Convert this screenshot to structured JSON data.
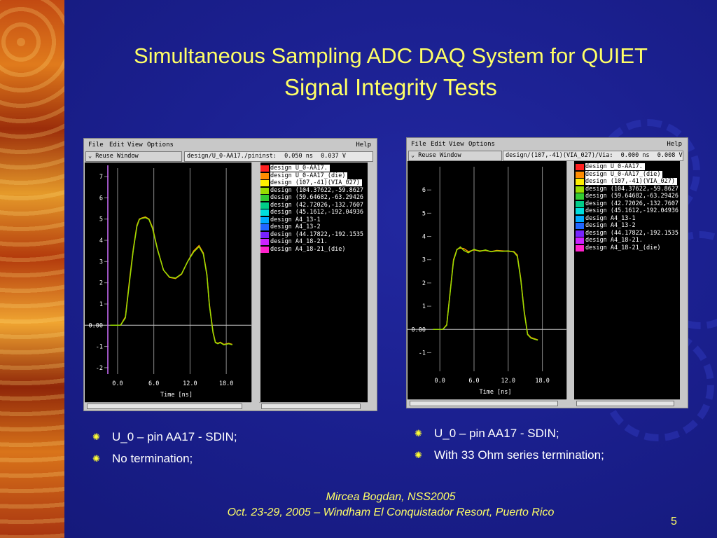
{
  "slide": {
    "title_line1": "Simultaneous Sampling ADC DAQ System for QUIET",
    "title_line2": "Signal Integrity Tests",
    "footer_line1": "Mircea Bogdan, NSS2005",
    "footer_line2": "Oct. 23-29, 2005 – Windham El Conquistador Resort, Puerto Rico",
    "page_number": "5",
    "accent_color": "#ffff66",
    "background_color": "#1b2090"
  },
  "windows": [
    {
      "menu": {
        "file": "File",
        "edit": "Edit",
        "view": "View",
        "options": "Options",
        "help": "Help"
      },
      "toolbar": {
        "reuse_label": "Reuse Window",
        "path": "design/U_0-AA17./pininst:",
        "readout_time": "0.050 ns",
        "readout_value": "0.037 V"
      },
      "legend": [
        {
          "label": "design  U_0-AA17.",
          "color": "#ff2020",
          "highlight": true
        },
        {
          "label": "design  U_0-AA17_(die)",
          "color": "#ff8c00",
          "highlight": true
        },
        {
          "label": "design  (107,-41)(VIA_027)",
          "color": "#ffee00",
          "highlight": true
        },
        {
          "label": "design  (104.37622,-59.8627",
          "color": "#99dd00",
          "highlight": false
        },
        {
          "label": "design  (59.64682,-63.29426",
          "color": "#33cc33",
          "highlight": false
        },
        {
          "label": "design  (42.72026,-132.7607",
          "color": "#00cc88",
          "highlight": false
        },
        {
          "label": "design  (45.1612,-192.04936",
          "color": "#00dddd",
          "highlight": false
        },
        {
          "label": "design  A4_13-1",
          "color": "#00aaff",
          "highlight": false
        },
        {
          "label": "design  A4_13-2",
          "color": "#2266ff",
          "highlight": false
        },
        {
          "label": "design  (44.17822,-192.1535",
          "color": "#7722ff",
          "highlight": false
        },
        {
          "label": "design  A4_18-21.",
          "color": "#cc22ff",
          "highlight": false
        },
        {
          "label": "design  A4_18-21_(die)",
          "color": "#ff22cc",
          "highlight": false
        }
      ],
      "chart_data": {
        "type": "line",
        "xlabel": "Time [ns]",
        "x_ticks": [
          "0.0",
          "6.0",
          "12.0",
          "18.0"
        ],
        "y_ticks": [
          "7",
          "6",
          "5",
          "4",
          "3",
          "2",
          "1",
          "0.00",
          "-1",
          "-2"
        ],
        "xlim": [
          -1.5,
          21
        ],
        "ylim": [
          -2.3,
          7.4
        ],
        "series": [
          {
            "color": "#ff8c00",
            "x": [
              -1.2,
              0.5,
              1.3,
              2.0,
              2.6,
              3.2,
              3.6,
              4.0,
              4.6,
              5.2,
              5.8,
              6.6,
              7.6,
              8.6,
              9.6,
              10.6,
              11.6,
              12.6,
              13.5,
              14.2,
              14.8,
              15.2,
              15.8,
              16.2,
              16.6,
              17.0,
              17.6,
              18.4,
              19.0
            ],
            "y": [
              0,
              0,
              0.4,
              2.2,
              3.6,
              4.7,
              5.0,
              5.05,
              5.1,
              5.0,
              4.6,
              3.6,
              2.6,
              2.25,
              2.2,
              2.4,
              3.0,
              3.5,
              3.75,
              3.4,
              2.4,
              1.0,
              -0.3,
              -0.8,
              -0.85,
              -0.8,
              -0.9,
              -0.85,
              -0.9
            ]
          },
          {
            "color": "#99dd00",
            "x": [
              -1.2,
              0.5,
              1.3,
              2.0,
              2.6,
              3.2,
              3.6,
              4.0,
              4.6,
              5.2,
              5.8,
              6.6,
              7.6,
              8.6,
              9.6,
              10.6,
              11.6,
              12.6,
              13.5,
              14.2,
              14.8,
              15.2,
              15.8,
              16.2,
              16.6,
              17.0,
              17.6,
              18.4,
              19.0
            ],
            "y": [
              0,
              0,
              0.35,
              2.1,
              3.55,
              4.65,
              4.98,
              5.03,
              5.07,
              4.98,
              4.55,
              3.58,
              2.6,
              2.27,
              2.22,
              2.42,
              3.0,
              3.45,
              3.7,
              3.35,
              2.35,
              0.95,
              -0.35,
              -0.82,
              -0.87,
              -0.82,
              -0.92,
              -0.87,
              -0.92
            ]
          }
        ]
      }
    },
    {
      "menu": {
        "file": "File",
        "edit": "Edit",
        "view": "View",
        "options": "Options",
        "help": "Help"
      },
      "toolbar": {
        "reuse_label": "Reuse Window",
        "path": "design/(107,-41)(VIA_027)/Via:",
        "readout_time": "0.000 ns",
        "readout_value": "0.008 V"
      },
      "legend": [
        {
          "label": "design  U_0-AA17.",
          "color": "#ff2020",
          "highlight": true
        },
        {
          "label": "design  U_0-AA17_(die)",
          "color": "#ff8c00",
          "highlight": true
        },
        {
          "label": "design  (107,-41)(VIA_027)",
          "color": "#ffee00",
          "highlight": true
        },
        {
          "label": "design  (104.37622,-59.8627",
          "color": "#99dd00",
          "highlight": false
        },
        {
          "label": "design  (59.64682,-63.29426",
          "color": "#33cc33",
          "highlight": false
        },
        {
          "label": "design  (42.72026,-132.7607",
          "color": "#00cc88",
          "highlight": false
        },
        {
          "label": "design  (45.1612,-192.04936",
          "color": "#00dddd",
          "highlight": false
        },
        {
          "label": "design  A4_13-1",
          "color": "#00aaff",
          "highlight": false
        },
        {
          "label": "design  A4_13-2",
          "color": "#2266ff",
          "highlight": false
        },
        {
          "label": "design  (44.17822,-192.1535",
          "color": "#7722ff",
          "highlight": false
        },
        {
          "label": "design  A4_18-21.",
          "color": "#cc22ff",
          "highlight": false
        },
        {
          "label": "design  A4_18-21_(die)",
          "color": "#ff22cc",
          "highlight": false
        }
      ],
      "chart_data": {
        "type": "line",
        "xlabel": "Time [ns]",
        "x_ticks": [
          "0.0",
          "6.0",
          "12.0",
          "18.0"
        ],
        "y_ticks": [
          "6",
          "5",
          "4",
          "3",
          "2",
          "1",
          "0.00",
          "-1"
        ],
        "xlim": [
          -1.5,
          21
        ],
        "ylim": [
          -1.8,
          7.0
        ],
        "series": [
          {
            "color": "#ff8c00",
            "x": [
              -1.2,
              0.5,
              1.2,
              1.8,
              2.4,
              3.0,
              3.6,
              4.2,
              5.0,
              6.0,
              7.0,
              8.0,
              9.0,
              10.0,
              11.0,
              12.0,
              13.0,
              13.6,
              14.2,
              14.8,
              15.4,
              16.0,
              16.6,
              17.2
            ],
            "y": [
              0,
              0,
              0.2,
              1.6,
              3.0,
              3.45,
              3.5,
              3.48,
              3.35,
              3.42,
              3.38,
              3.4,
              3.35,
              3.4,
              3.38,
              3.36,
              3.35,
              3.2,
              2.2,
              0.8,
              -0.2,
              -0.35,
              -0.4,
              -0.45
            ]
          },
          {
            "color": "#99dd00",
            "x": [
              -1.2,
              0.5,
              1.2,
              1.8,
              2.4,
              3.0,
              3.6,
              4.2,
              5.0,
              6.0,
              7.0,
              8.0,
              9.0,
              10.0,
              11.0,
              12.0,
              13.0,
              13.6,
              14.2,
              14.8,
              15.4,
              16.0,
              16.6,
              17.2
            ],
            "y": [
              0,
              0,
              0.18,
              1.55,
              2.95,
              3.43,
              3.55,
              3.4,
              3.3,
              3.45,
              3.36,
              3.42,
              3.34,
              3.38,
              3.36,
              3.38,
              3.33,
              3.15,
              2.15,
              0.75,
              -0.22,
              -0.37,
              -0.42,
              -0.46
            ]
          }
        ]
      }
    }
  ],
  "bullets_left": [
    "U_0 – pin AA17 - SDIN;",
    "No termination;"
  ],
  "bullets_right": [
    "U_0 – pin AA17 - SDIN;",
    "With 33 Ohm series termination;"
  ],
  "bullet_icon": "sun-bullet-icon"
}
